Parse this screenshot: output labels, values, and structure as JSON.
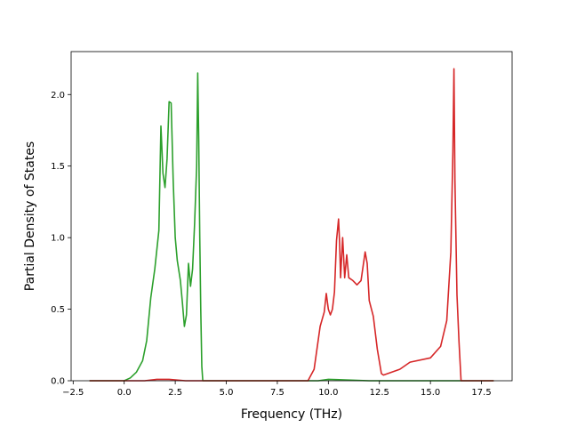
{
  "chart_data": {
    "type": "line",
    "title": "",
    "xlabel": "Frequency (THz)",
    "ylabel": "Partial Density of States",
    "xlim": [
      -2.6,
      19.0
    ],
    "ylim": [
      0.0,
      2.3
    ],
    "xticks": [
      -2.5,
      0.0,
      2.5,
      5.0,
      7.5,
      10.0,
      12.5,
      15.0,
      17.5
    ],
    "xtick_labels": [
      "−2.5",
      "0.0",
      "2.5",
      "5.0",
      "7.5",
      "10.0",
      "12.5",
      "15.0",
      "17.5"
    ],
    "yticks": [
      0.0,
      0.5,
      1.0,
      1.5,
      2.0
    ],
    "ytick_labels": [
      "0.0",
      "0.5",
      "1.0",
      "1.5",
      "2.0"
    ],
    "grid": false,
    "legend": "none",
    "series": [
      {
        "color": "#2ca02c",
        "x": [
          -1.7,
          0.0,
          0.3,
          0.6,
          0.9,
          1.1,
          1.3,
          1.5,
          1.7,
          1.8,
          1.9,
          2.0,
          2.1,
          2.2,
          2.3,
          2.4,
          2.5,
          2.6,
          2.75,
          2.85,
          2.95,
          3.05,
          3.15,
          3.25,
          3.35,
          3.45,
          3.55,
          3.6,
          3.65,
          3.7,
          3.75,
          3.8,
          3.85,
          3.95,
          9.5,
          10.0,
          12.0,
          14.0,
          18.1
        ],
        "y": [
          0.0,
          0.0,
          0.02,
          0.06,
          0.14,
          0.28,
          0.58,
          0.78,
          1.05,
          1.78,
          1.45,
          1.35,
          1.55,
          1.95,
          1.94,
          1.4,
          1.0,
          0.84,
          0.7,
          0.55,
          0.38,
          0.46,
          0.82,
          0.66,
          0.78,
          1.1,
          1.5,
          2.15,
          1.7,
          1.0,
          0.5,
          0.1,
          0.0,
          0.0,
          0.0,
          0.01,
          0.0,
          0.0,
          0.0
        ]
      },
      {
        "color": "#d62728",
        "x": [
          -1.7,
          1.0,
          1.6,
          2.2,
          3.0,
          9.0,
          9.3,
          9.6,
          9.8,
          9.9,
          10.0,
          10.1,
          10.2,
          10.3,
          10.4,
          10.5,
          10.55,
          10.6,
          10.7,
          10.8,
          10.9,
          11.0,
          11.2,
          11.4,
          11.6,
          11.8,
          11.9,
          12.0,
          12.2,
          12.4,
          12.6,
          12.7,
          13.5,
          14.0,
          15.0,
          15.5,
          15.8,
          16.0,
          16.1,
          16.15,
          16.2,
          16.3,
          16.4,
          16.5,
          18.1
        ],
        "y": [
          0.0,
          0.0,
          0.01,
          0.01,
          0.0,
          0.0,
          0.08,
          0.38,
          0.48,
          0.61,
          0.5,
          0.46,
          0.5,
          0.62,
          0.98,
          1.13,
          0.96,
          0.72,
          1.0,
          0.72,
          0.88,
          0.72,
          0.7,
          0.67,
          0.7,
          0.9,
          0.82,
          0.56,
          0.45,
          0.22,
          0.05,
          0.04,
          0.08,
          0.13,
          0.16,
          0.24,
          0.42,
          0.9,
          1.6,
          2.18,
          1.4,
          0.6,
          0.27,
          0.0,
          0.0
        ]
      }
    ]
  }
}
